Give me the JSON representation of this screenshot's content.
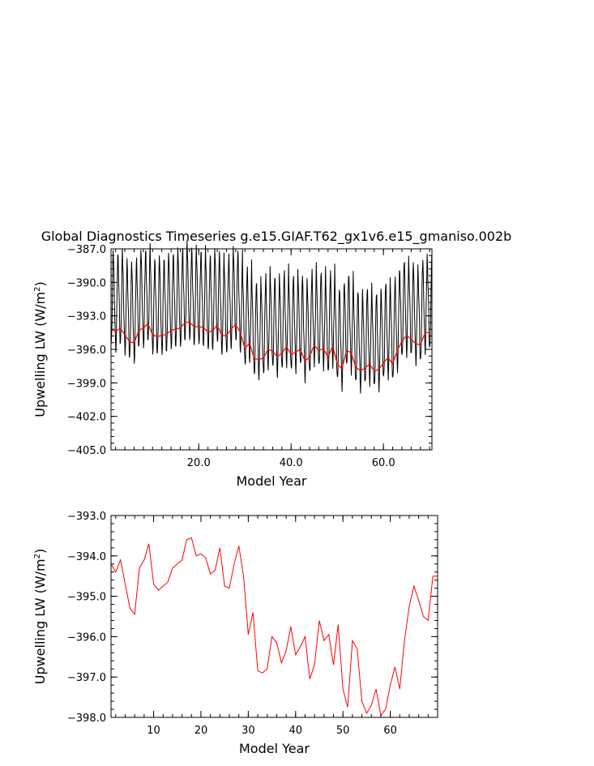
{
  "title": "Global Diagnostics Timeseries g.e15.GIAF.T62_gx1v6.e15_gmaniso.002b",
  "colors": {
    "monthly": "#000000",
    "annual": "#ff0000",
    "frame": "#000000"
  },
  "chart_data": [
    {
      "type": "line",
      "xlabel": "Model Year",
      "ylabel": "Upwelling LW (W/m²)",
      "xlim": [
        1,
        70.5
      ],
      "ylim": [
        -405.0,
        -387.0
      ],
      "xticks": [
        20.0,
        40.0,
        60.0
      ],
      "xtick_labels": [
        "20.0",
        "40.0",
        "60.0"
      ],
      "yticks": [
        -387.0,
        -390.0,
        -393.0,
        -396.0,
        -399.0,
        -402.0,
        -405.0
      ],
      "ytick_labels": [
        "−387.0",
        "−390.0",
        "−393.0",
        "−396.0",
        "−399.0",
        "−402.0",
        "−405.0"
      ],
      "grid": false,
      "series": [
        {
          "key": "monthly",
          "color": "#000000",
          "seasonal_cycle": [
            0.6,
            -0.8,
            -2.2,
            -3.6,
            -5.2,
            -6.4,
            -7.0,
            -6.2,
            -4.6,
            -2.4,
            -0.5,
            1.2
          ],
          "cycle_note_amplitude": 1.0
        },
        {
          "key": "annual",
          "color": "#ff0000"
        }
      ]
    },
    {
      "type": "line",
      "xlabel": "Model Year",
      "ylabel": "Upwelling LW (W/m²)",
      "xlim": [
        1,
        70
      ],
      "ylim": [
        -398.0,
        -393.0
      ],
      "xticks": [
        10,
        20,
        30,
        40,
        50,
        60
      ],
      "xtick_labels": [
        "10",
        "20",
        "30",
        "40",
        "50",
        "60"
      ],
      "yticks": [
        -393.0,
        -394.0,
        -395.0,
        -396.0,
        -397.0,
        -398.0
      ],
      "ytick_labels": [
        "−393.0",
        "−394.0",
        "−395.0",
        "−396.0",
        "−397.0",
        "−398.0"
      ],
      "grid": false,
      "series": [
        {
          "key": "annual",
          "color": "#ff0000",
          "x": [
            1,
            2,
            3,
            4,
            5,
            6,
            7,
            8,
            9,
            10,
            11,
            12,
            13,
            14,
            15,
            16,
            17,
            18,
            19,
            20,
            21,
            22,
            23,
            24,
            25,
            26,
            27,
            28,
            29,
            30,
            31,
            32,
            33,
            34,
            35,
            36,
            37,
            38,
            39,
            40,
            41,
            42,
            43,
            44,
            45,
            46,
            47,
            48,
            49,
            50,
            51,
            52,
            53,
            54,
            55,
            56,
            57,
            58,
            59,
            60,
            61,
            62,
            63,
            64,
            65,
            66,
            67,
            68,
            69,
            70
          ],
          "y": [
            -394.2,
            -394.4,
            -394.1,
            -394.7,
            -395.3,
            -395.45,
            -394.3,
            -394.1,
            -393.7,
            -394.7,
            -394.85,
            -394.75,
            -394.65,
            -394.3,
            -394.2,
            -394.1,
            -393.6,
            -393.55,
            -394.0,
            -393.95,
            -394.05,
            -394.45,
            -394.35,
            -393.8,
            -394.75,
            -394.8,
            -394.2,
            -393.75,
            -394.5,
            -395.95,
            -395.4,
            -396.85,
            -396.9,
            -396.8,
            -396.0,
            -396.15,
            -396.65,
            -396.35,
            -395.75,
            -396.45,
            -396.25,
            -396.0,
            -397.05,
            -396.7,
            -395.6,
            -396.1,
            -395.95,
            -396.7,
            -395.7,
            -397.3,
            -397.75,
            -396.1,
            -396.3,
            -397.6,
            -397.9,
            -397.7,
            -397.3,
            -397.95,
            -397.8,
            -397.2,
            -396.75,
            -397.3,
            -396.1,
            -395.25,
            -394.75,
            -395.1,
            -395.5,
            -395.6,
            -394.5,
            -394.5
          ]
        }
      ]
    }
  ]
}
